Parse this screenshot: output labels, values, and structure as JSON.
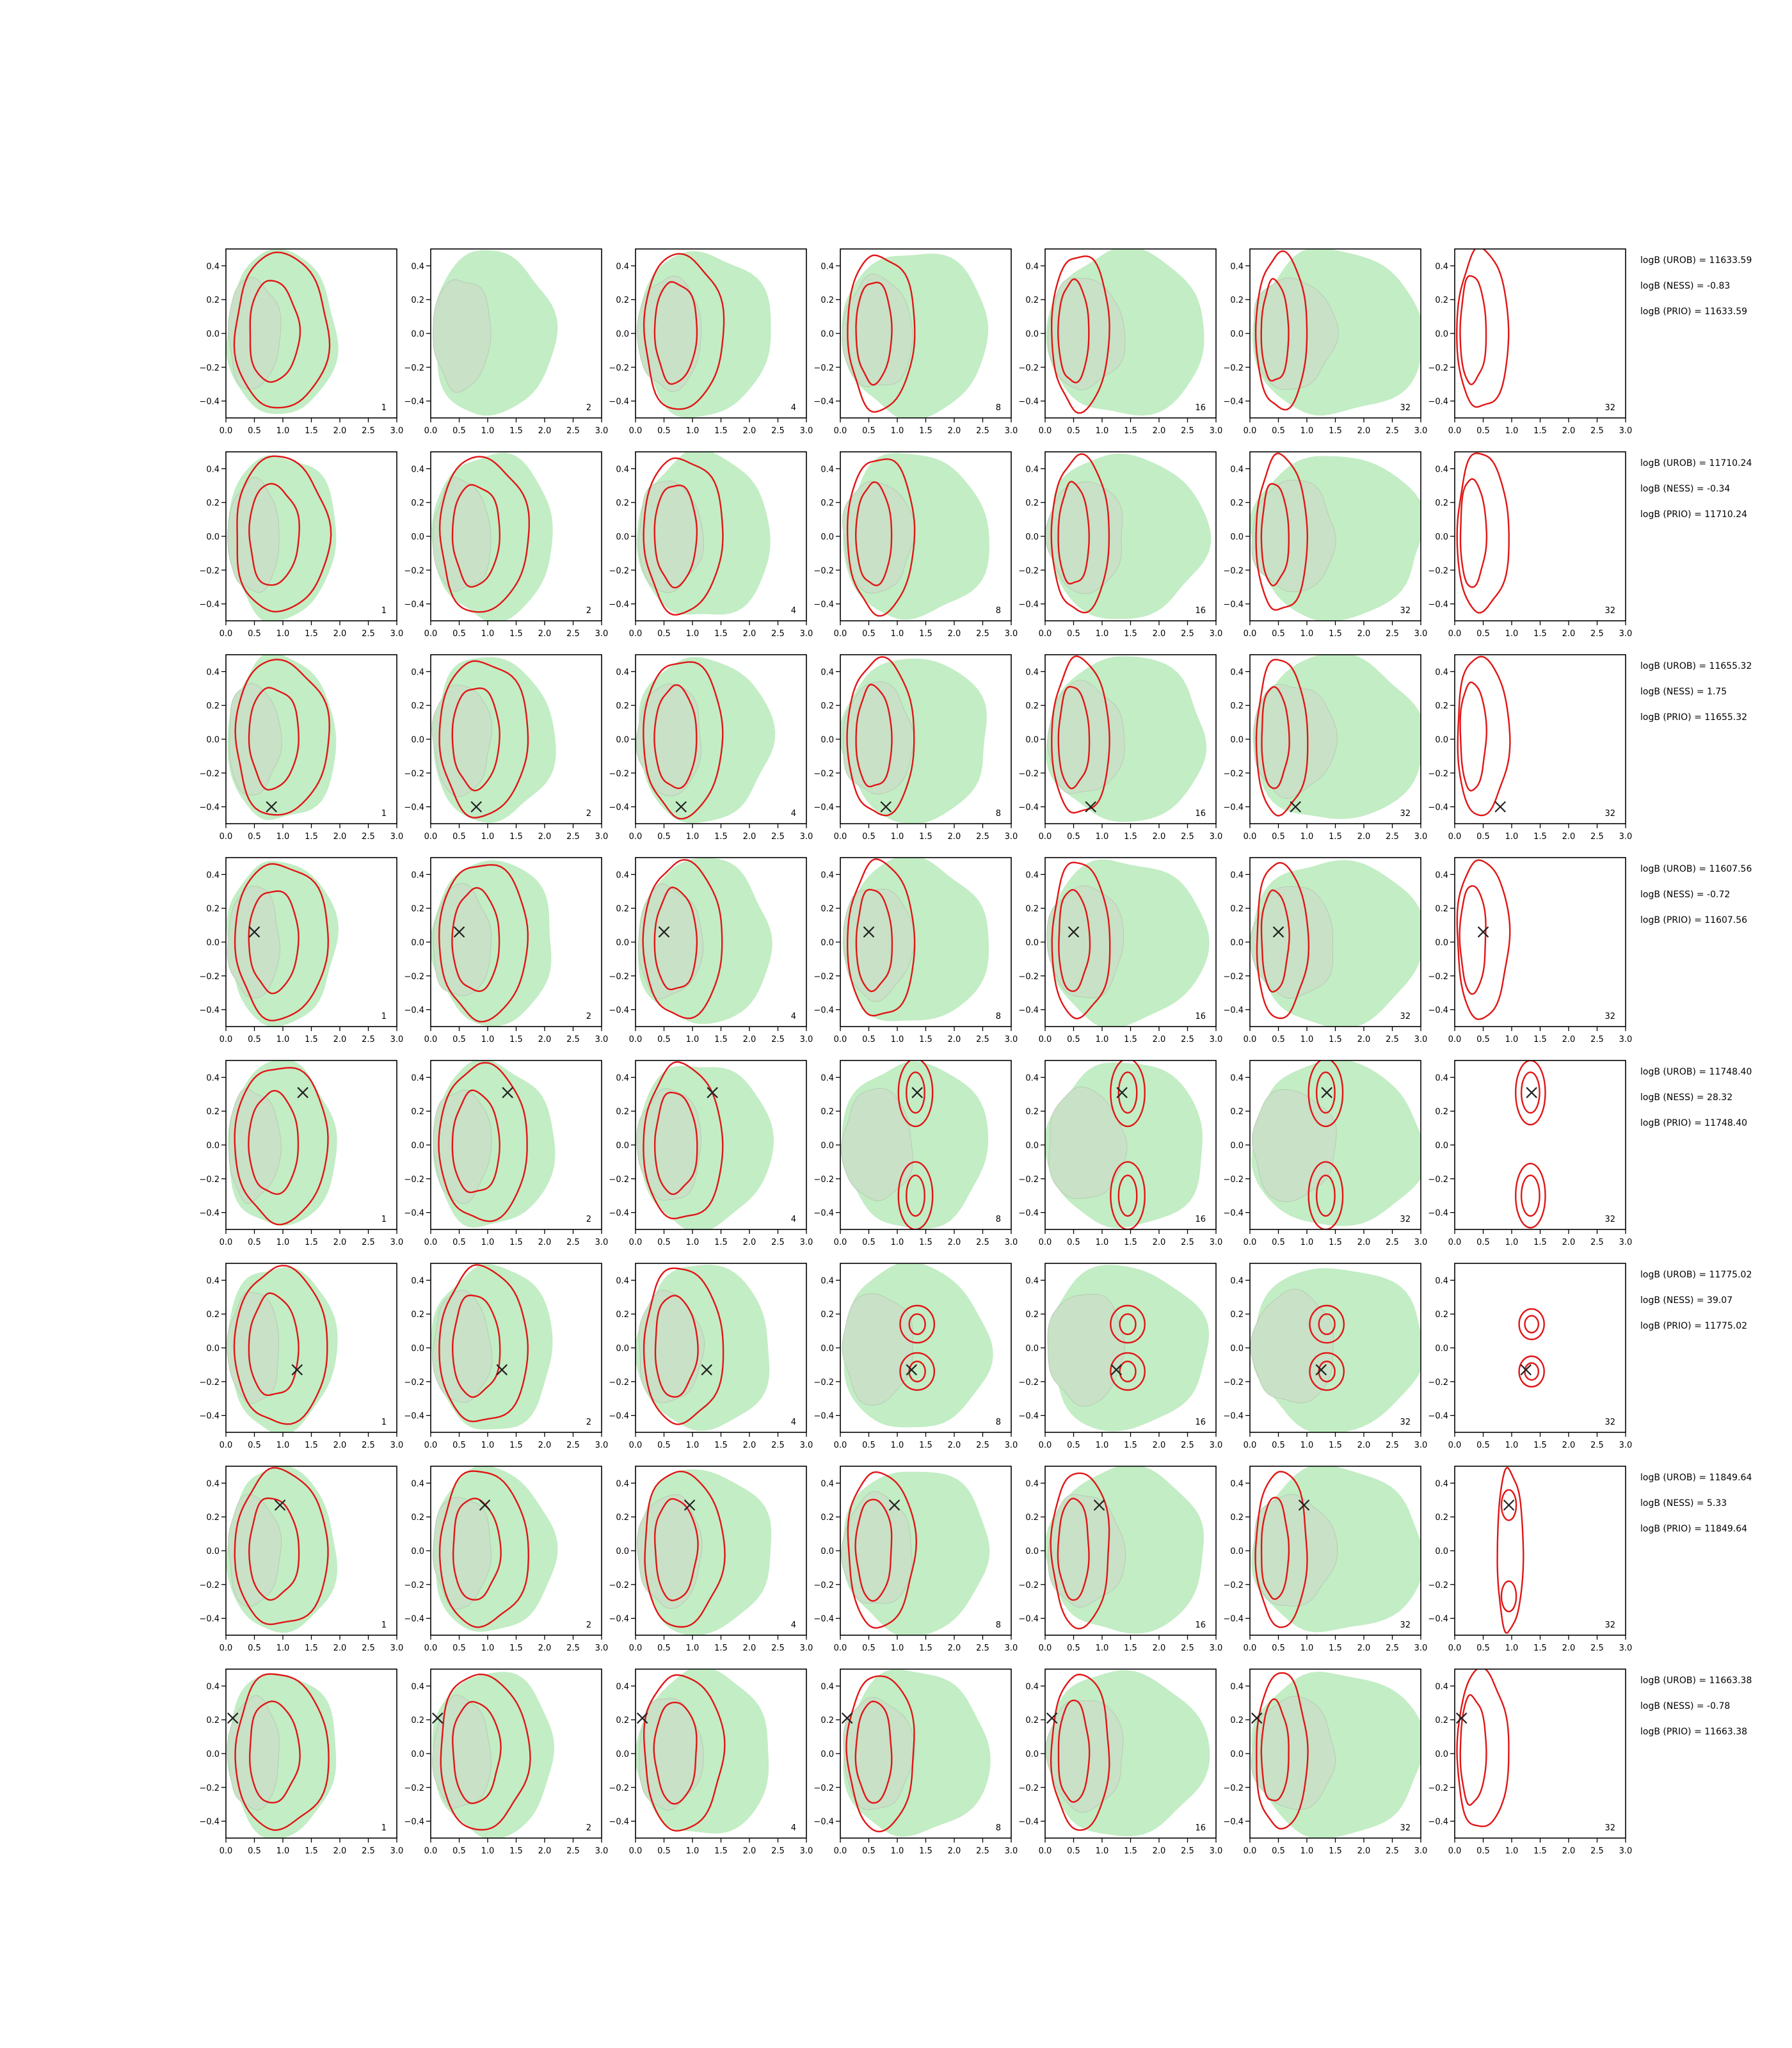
{
  "chart_data": {
    "type": "contour_grid",
    "xlim": [
      0.0,
      3.0
    ],
    "ylim": [
      -0.5,
      0.5
    ],
    "xticks": [
      "0.0",
      "0.5",
      "1.0",
      "1.5",
      "2.0",
      "2.5",
      "3.0"
    ],
    "yticks": [
      "0.4",
      "0.2",
      "0.0",
      "−0.2",
      "−0.4"
    ],
    "colors": {
      "fill_outer": "#c3edc5",
      "fill_inner": "#c9e1c6",
      "contour": "#e11616",
      "marker": "#222222",
      "frame": "#000000"
    },
    "rows": [
      {
        "labels": [
          "1",
          "2",
          "4",
          "8",
          "16",
          "32",
          "32"
        ],
        "marker": null,
        "ann": [
          "logB (UROB) = 11633.59",
          "logB (NESS) = -0.83",
          "logB (PRIO) = 11633.59"
        ]
      },
      {
        "labels": [
          "1",
          "2",
          "4",
          "8",
          "16",
          "32",
          "32"
        ],
        "marker": null,
        "ann": [
          "logB (UROB) = 11710.24",
          "logB (NESS) = -0.34",
          "logB (PRIO) = 11710.24"
        ]
      },
      {
        "labels": [
          "1",
          "2",
          "4",
          "8",
          "16",
          "32",
          "32"
        ],
        "marker": [
          0.8,
          -0.4
        ],
        "ann": [
          "logB (UROB) = 11655.32",
          "logB (NESS) = 1.75",
          "logB (PRIO) = 11655.32"
        ]
      },
      {
        "labels": [
          "1",
          "2",
          "4",
          "8",
          "16",
          "32",
          "32"
        ],
        "marker": [
          0.5,
          0.06
        ],
        "ann": [
          "logB (UROB) = 11607.56",
          "logB (NESS) = -0.72",
          "logB (PRIO) = 11607.56"
        ]
      },
      {
        "labels": [
          "1",
          "2",
          "4",
          "8",
          "16",
          "32",
          "32"
        ],
        "marker": [
          1.35,
          0.31
        ],
        "ann": [
          "logB (UROB) = 11748.40",
          "logB (NESS) = 28.32",
          "logB (PRIO) = 11748.40"
        ]
      },
      {
        "labels": [
          "1",
          "2",
          "4",
          "8",
          "16",
          "32",
          "32"
        ],
        "marker": [
          1.25,
          -0.13
        ],
        "ann": [
          "logB (UROB) = 11775.02",
          "logB (NESS) = 39.07",
          "logB (PRIO) = 11775.02"
        ]
      },
      {
        "labels": [
          "1",
          "2",
          "4",
          "8",
          "16",
          "32",
          "32"
        ],
        "marker": [
          0.95,
          0.27
        ],
        "ann": [
          "logB (UROB) = 11849.64",
          "logB (NESS) = 5.33",
          "logB (PRIO) = 11849.64"
        ]
      },
      {
        "labels": [
          "1",
          "2",
          "4",
          "8",
          "16",
          "32",
          "32"
        ],
        "marker": [
          0.12,
          0.21
        ],
        "ann": [
          "logB (UROB) = 11663.38",
          "logB (NESS) = -0.78",
          "logB (PRIO) = 11663.38"
        ]
      }
    ]
  }
}
